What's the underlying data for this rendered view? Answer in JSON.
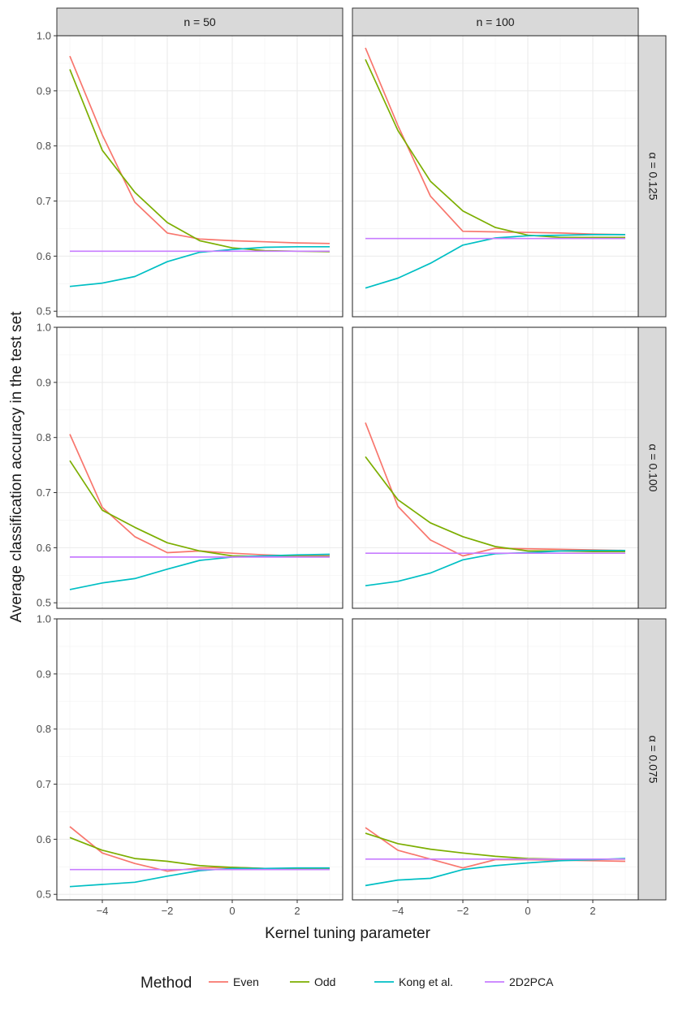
{
  "chart_data": {
    "type": "line",
    "ylabel": "Average classification accuracy in the test set",
    "xlabel": "Kernel tuning parameter",
    "xlim": [
      -5.4,
      3.4
    ],
    "ylim": [
      0.49,
      1.0
    ],
    "x_ticks": [
      -4,
      -2,
      0,
      2
    ],
    "x_tick_labels": [
      "−4",
      "−2",
      "0",
      "2"
    ],
    "y_ticks": [
      0.5,
      0.6,
      0.7,
      0.8,
      0.9,
      1.0
    ],
    "y_tick_labels": [
      "0.5",
      "0.6",
      "0.7",
      "0.8",
      "0.9",
      "1.0"
    ],
    "x": [
      -5,
      -4,
      -3,
      -2,
      -1,
      0,
      1,
      2,
      3
    ],
    "legend": {
      "title": "Method",
      "position": "bottom",
      "entries": [
        {
          "name": "Even",
          "color": "#F8766D"
        },
        {
          "name": "Odd",
          "color": "#7CAE00"
        },
        {
          "name": "Kong et al.",
          "color": "#00BFC4"
        },
        {
          "name": "2D2PCA",
          "color": "#C77CFF"
        }
      ]
    },
    "columns": [
      "n = 50",
      "n = 100"
    ],
    "rows": [
      "α = 0.125",
      "α = 0.100",
      "α = 0.075"
    ],
    "panels": [
      {
        "row": 0,
        "col": 0,
        "series": [
          {
            "name": "Even",
            "values": [
              0.963,
              0.82,
              0.698,
              0.642,
              0.631,
              0.628,
              0.626,
              0.624,
              0.623
            ]
          },
          {
            "name": "Odd",
            "values": [
              0.939,
              0.792,
              0.716,
              0.661,
              0.628,
              0.615,
              0.61,
              0.609,
              0.608
            ]
          },
          {
            "name": "Kong et al.",
            "values": [
              0.545,
              0.551,
              0.563,
              0.59,
              0.607,
              0.612,
              0.616,
              0.617,
              0.617
            ]
          },
          {
            "name": "2D2PCA",
            "values": [
              0.609,
              0.609,
              0.609,
              0.609,
              0.609,
              0.609,
              0.609,
              0.609,
              0.609
            ]
          }
        ]
      },
      {
        "row": 0,
        "col": 1,
        "series": [
          {
            "name": "Even",
            "values": [
              0.978,
              0.837,
              0.709,
              0.645,
              0.644,
              0.643,
              0.642,
              0.64,
              0.639
            ]
          },
          {
            "name": "Odd",
            "values": [
              0.957,
              0.828,
              0.736,
              0.682,
              0.652,
              0.638,
              0.634,
              0.634,
              0.634
            ]
          },
          {
            "name": "Kong et al.",
            "values": [
              0.542,
              0.56,
              0.587,
              0.62,
              0.633,
              0.637,
              0.638,
              0.639,
              0.639
            ]
          },
          {
            "name": "2D2PCA",
            "values": [
              0.632,
              0.632,
              0.632,
              0.632,
              0.632,
              0.632,
              0.632,
              0.632,
              0.632
            ]
          }
        ]
      },
      {
        "row": 1,
        "col": 0,
        "series": [
          {
            "name": "Even",
            "values": [
              0.806,
              0.673,
              0.62,
              0.591,
              0.594,
              0.59,
              0.587,
              0.585,
              0.585
            ]
          },
          {
            "name": "Odd",
            "values": [
              0.758,
              0.668,
              0.637,
              0.609,
              0.594,
              0.585,
              0.584,
              0.584,
              0.584
            ]
          },
          {
            "name": "Kong et al.",
            "values": [
              0.524,
              0.536,
              0.544,
              0.561,
              0.577,
              0.583,
              0.585,
              0.587,
              0.588
            ]
          },
          {
            "name": "2D2PCA",
            "values": [
              0.583,
              0.583,
              0.583,
              0.583,
              0.583,
              0.583,
              0.583,
              0.583,
              0.583
            ]
          }
        ]
      },
      {
        "row": 1,
        "col": 1,
        "series": [
          {
            "name": "Even",
            "values": [
              0.827,
              0.675,
              0.614,
              0.585,
              0.599,
              0.598,
              0.597,
              0.596,
              0.595
            ]
          },
          {
            "name": "Odd",
            "values": [
              0.765,
              0.687,
              0.645,
              0.62,
              0.602,
              0.594,
              0.594,
              0.593,
              0.593
            ]
          },
          {
            "name": "Kong et al.",
            "values": [
              0.531,
              0.539,
              0.554,
              0.578,
              0.589,
              0.591,
              0.594,
              0.595,
              0.595
            ]
          },
          {
            "name": "2D2PCA",
            "values": [
              0.59,
              0.59,
              0.59,
              0.59,
              0.59,
              0.59,
              0.59,
              0.59,
              0.59
            ]
          }
        ]
      },
      {
        "row": 2,
        "col": 0,
        "series": [
          {
            "name": "Even",
            "values": [
              0.623,
              0.575,
              0.556,
              0.542,
              0.548,
              0.549,
              0.547,
              0.546,
              0.546
            ]
          },
          {
            "name": "Odd",
            "values": [
              0.603,
              0.58,
              0.565,
              0.56,
              0.552,
              0.549,
              0.547,
              0.546,
              0.546
            ]
          },
          {
            "name": "Kong et al.",
            "values": [
              0.514,
              0.518,
              0.522,
              0.533,
              0.543,
              0.547,
              0.547,
              0.548,
              0.548
            ]
          },
          {
            "name": "2D2PCA",
            "values": [
              0.545,
              0.545,
              0.545,
              0.545,
              0.545,
              0.545,
              0.545,
              0.545,
              0.545
            ]
          }
        ]
      },
      {
        "row": 2,
        "col": 1,
        "series": [
          {
            "name": "Even",
            "values": [
              0.621,
              0.58,
              0.564,
              0.548,
              0.563,
              0.563,
              0.562,
              0.561,
              0.56
            ]
          },
          {
            "name": "Odd",
            "values": [
              0.611,
              0.592,
              0.582,
              0.575,
              0.569,
              0.565,
              0.564,
              0.564,
              0.564
            ]
          },
          {
            "name": "Kong et al.",
            "values": [
              0.516,
              0.526,
              0.529,
              0.545,
              0.552,
              0.557,
              0.561,
              0.563,
              0.565
            ]
          },
          {
            "name": "2D2PCA",
            "values": [
              0.564,
              0.564,
              0.564,
              0.564,
              0.564,
              0.564,
              0.564,
              0.564,
              0.564
            ]
          }
        ]
      }
    ]
  }
}
